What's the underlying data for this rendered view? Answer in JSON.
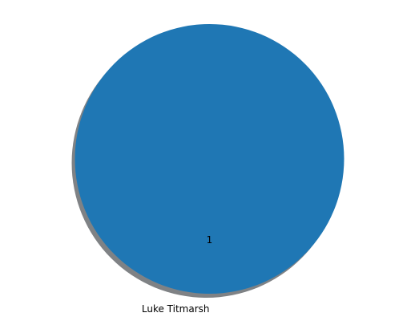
{
  "chart_data": {
    "type": "pie",
    "slices": [
      {
        "label": "Luke Titmarsh",
        "value": 1,
        "value_label": "1",
        "color": "#1f77b4"
      }
    ],
    "shadow": true,
    "shadow_color": "#7f8285",
    "legend": "none"
  }
}
